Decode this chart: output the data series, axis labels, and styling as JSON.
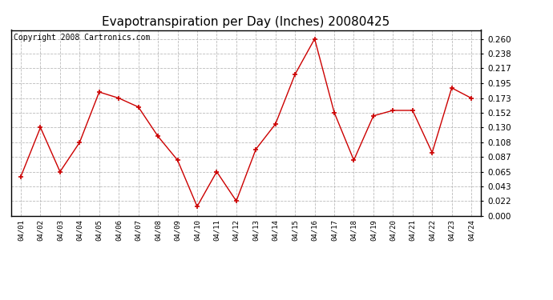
{
  "title": "Evapotranspiration per Day (Inches) 20080425",
  "copyright": "Copyright 2008 Cartronics.com",
  "categories": [
    "04/01",
    "04/02",
    "04/03",
    "04/04",
    "04/05",
    "04/06",
    "04/07",
    "04/08",
    "04/09",
    "04/10",
    "04/11",
    "04/12",
    "04/13",
    "04/14",
    "04/15",
    "04/16",
    "04/17",
    "04/18",
    "04/19",
    "04/20",
    "04/21",
    "04/22",
    "04/23",
    "04/24"
  ],
  "values": [
    0.058,
    0.13,
    0.065,
    0.108,
    0.182,
    0.173,
    0.16,
    0.117,
    0.082,
    0.014,
    0.065,
    0.022,
    0.098,
    0.135,
    0.208,
    0.26,
    0.152,
    0.082,
    0.147,
    0.155,
    0.155,
    0.093,
    0.188,
    0.173
  ],
  "line_color": "#cc0000",
  "marker_color": "#cc0000",
  "background_color": "#ffffff",
  "grid_color": "#bbbbbb",
  "ylim": [
    0.0,
    0.273
  ],
  "yticks": [
    0.0,
    0.022,
    0.043,
    0.065,
    0.087,
    0.108,
    0.13,
    0.152,
    0.173,
    0.195,
    0.217,
    0.238,
    0.26
  ],
  "title_fontsize": 11,
  "copyright_fontsize": 7
}
